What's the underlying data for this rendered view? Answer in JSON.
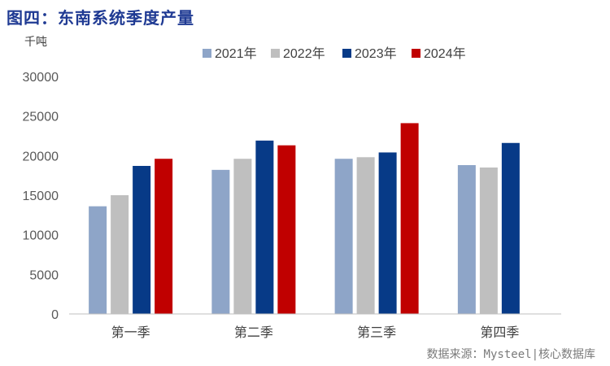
{
  "title": "图四：东南系统季度产量",
  "source": "数据来源：Mysteel|核心数据库",
  "colors": {
    "title": "#1f3a93",
    "series": [
      "#8ea5c8",
      "#bfbfbf",
      "#073a87",
      "#c00000"
    ]
  },
  "chart_data": {
    "type": "bar",
    "ylabel": "千吨",
    "categories": [
      "第一季",
      "第二季",
      "第三季",
      "第四季"
    ],
    "ylim": [
      0,
      30000
    ],
    "yticks": [
      0,
      5000,
      10000,
      15000,
      20000,
      25000,
      30000
    ],
    "grid": false,
    "legend_position": "top",
    "series": [
      {
        "name": "2021年",
        "values": [
          13600,
          18200,
          19600,
          18800
        ]
      },
      {
        "name": "2022年",
        "values": [
          15000,
          19600,
          19800,
          18500
        ]
      },
      {
        "name": "2023年",
        "values": [
          18700,
          21900,
          20400,
          21600
        ]
      },
      {
        "name": "2024年",
        "values": [
          19600,
          21300,
          24100,
          null
        ]
      }
    ]
  }
}
